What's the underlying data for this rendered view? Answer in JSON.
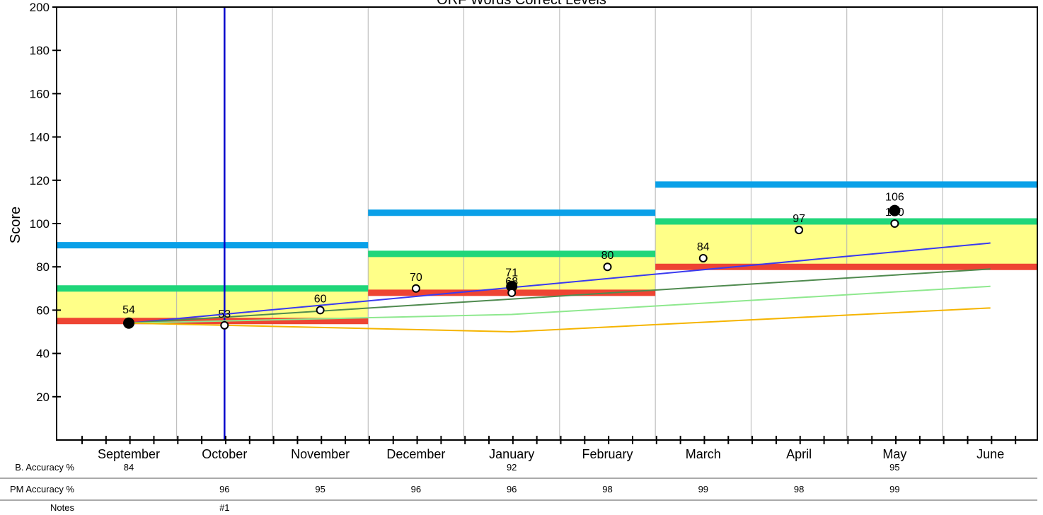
{
  "chart_data": {
    "type": "line",
    "title": "ORF Words Correct Levels",
    "ylabel": "Score",
    "xlabel": "",
    "ylim": [
      0,
      200
    ],
    "yticks": [
      20,
      40,
      60,
      80,
      100,
      120,
      140,
      160,
      180,
      200
    ],
    "grid": true,
    "months": [
      "September",
      "October",
      "November",
      "December",
      "January",
      "February",
      "March",
      "April",
      "May",
      "June"
    ],
    "benchmark_periods": [
      {
        "start": "September",
        "end": "November",
        "upper": 90,
        "green": 70,
        "lower": 55
      },
      {
        "start": "December",
        "end": "February",
        "upper": 105,
        "green": 86,
        "lower": 68
      },
      {
        "start": "March",
        "end": "June",
        "upper": 118,
        "green": 101,
        "lower": 80
      }
    ],
    "marker_line": {
      "month": "October",
      "label": "#1"
    },
    "trend_lines": [
      {
        "color": "#3a3af0",
        "points": [
          [
            "September",
            54
          ],
          [
            "June",
            91
          ]
        ]
      },
      {
        "color": "#4f8a4f",
        "points": [
          [
            "September",
            54
          ],
          [
            "June",
            79
          ]
        ]
      },
      {
        "color": "#8ee88e",
        "points": [
          [
            "September",
            54
          ],
          [
            "January",
            58
          ],
          [
            "June",
            71
          ]
        ]
      },
      {
        "color": "#f5b400",
        "points": [
          [
            "September",
            54
          ],
          [
            "January",
            50
          ],
          [
            "June",
            61
          ]
        ]
      }
    ],
    "benchmark_points": [
      {
        "month": "September",
        "value": 54
      },
      {
        "month": "January",
        "value": 71
      },
      {
        "month": "May",
        "value": 106
      }
    ],
    "progress_points": [
      {
        "month": "October",
        "value": 53
      },
      {
        "month": "November",
        "value": 60
      },
      {
        "month": "December",
        "value": 70
      },
      {
        "month": "January",
        "value": 68
      },
      {
        "month": "February",
        "value": 80
      },
      {
        "month": "March",
        "value": 84
      },
      {
        "month": "April",
        "value": 97
      },
      {
        "month": "May",
        "value": 100
      }
    ]
  },
  "table": {
    "rows": [
      {
        "label": "B. Accuracy %",
        "cells": [
          {
            "month": "September",
            "value": "84"
          },
          {
            "month": "January",
            "value": "92"
          },
          {
            "month": "May",
            "value": "95"
          }
        ]
      },
      {
        "label": "PM Accuracy %",
        "cells": [
          {
            "month": "October",
            "value": "96"
          },
          {
            "month": "November",
            "value": "95"
          },
          {
            "month": "December",
            "value": "96"
          },
          {
            "month": "January",
            "value": "96"
          },
          {
            "month": "February",
            "value": "98"
          },
          {
            "month": "March",
            "value": "99"
          },
          {
            "month": "April",
            "value": "98"
          },
          {
            "month": "May",
            "value": "99"
          }
        ]
      },
      {
        "label": "Notes",
        "cells": [
          {
            "month": "October",
            "value": "#1"
          }
        ]
      }
    ]
  },
  "colors": {
    "upper_band": "#0aa0e8",
    "green_band": "#1fd67a",
    "red_band": "#ee4433",
    "yellow_fill": "#ffff88",
    "marker_line": "#0000cc"
  }
}
